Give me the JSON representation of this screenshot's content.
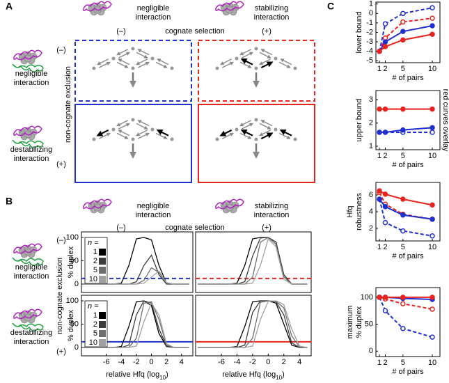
{
  "panel_labels": [
    "A",
    "B",
    "C"
  ],
  "panel_a": {
    "col_headers": [
      [
        "negligible",
        "interaction"
      ],
      [
        "stabilizing",
        "interaction"
      ]
    ],
    "row_headers": [
      [
        "negligible",
        "interaction"
      ],
      [
        "destabilizing",
        "interaction"
      ]
    ],
    "minus": "(–)",
    "cognate_selection": "cognate selection",
    "plus": "(+)",
    "non_cognate_exclusion": "non-cognate exclusion"
  },
  "panel_b": {
    "col_headers": [
      [
        "negligible",
        "interaction"
      ],
      [
        "stabilizing",
        "interaction"
      ]
    ],
    "row_headers": [
      [
        "negligible",
        "interaction"
      ],
      [
        "destabilizing",
        "interaction"
      ]
    ],
    "minus": "(–)",
    "cognate_selection": "cognate selection",
    "plus": "(+)",
    "non_cognate_exclusion": "non-cognate exclusion"
  },
  "chart_data": [
    {
      "type": "line",
      "x": [
        -9,
        -8,
        -7,
        -6,
        -5,
        -4,
        -3,
        -2,
        -1,
        0,
        1,
        2,
        3,
        4,
        5
      ],
      "xlim": [
        -9.3,
        5.5
      ],
      "ylim": [
        -18,
        112
      ],
      "yticks": [
        0,
        50,
        100
      ],
      "y_label": [
        "% duplex"
      ],
      "legend": "upper left",
      "legend_title": "n =",
      "threshold": {
        "value": 12,
        "color": "#1f2fd0",
        "dashed": true
      },
      "series": [
        {
          "name": "1",
          "color": "#000000",
          "values": [
            0,
            0,
            0,
            0,
            0,
            2,
            40,
            97,
            100,
            95,
            40,
            2,
            0,
            0,
            0
          ]
        },
        {
          "name": "2",
          "color": "#3c3c3c",
          "values": [
            0,
            0,
            0,
            0,
            0,
            0,
            0,
            5,
            40,
            62,
            20,
            0,
            0,
            0,
            0
          ]
        },
        {
          "name": "5",
          "color": "#6e6e6e",
          "values": [
            0,
            0,
            0,
            0,
            0,
            0,
            0,
            0,
            8,
            35,
            25,
            2,
            0,
            0,
            0
          ]
        },
        {
          "name": "10",
          "color": "#a0a0a0",
          "values": [
            0,
            0,
            0,
            0,
            0,
            0,
            0,
            0,
            2,
            15,
            28,
            3,
            0,
            0,
            0
          ]
        }
      ]
    },
    {
      "type": "line",
      "x": [
        -9,
        -8,
        -7,
        -6,
        -5,
        -4,
        -3,
        -2,
        -1,
        0,
        1,
        2,
        3,
        4,
        5
      ],
      "xlim": [
        -9.3,
        5.5
      ],
      "ylim": [
        -18,
        112
      ],
      "threshold": {
        "value": 12,
        "color": "#e8231d",
        "dashed": true
      },
      "series": [
        {
          "color": "#000000",
          "values": [
            0,
            0,
            0,
            0,
            0,
            2,
            40,
            97,
            100,
            100,
            90,
            20,
            0,
            0,
            0
          ]
        },
        {
          "color": "#3c3c3c",
          "values": [
            0,
            0,
            0,
            0,
            0,
            0,
            5,
            60,
            99,
            100,
            90,
            20,
            0,
            0,
            0
          ]
        },
        {
          "color": "#6e6e6e",
          "values": [
            0,
            0,
            0,
            0,
            0,
            0,
            0,
            15,
            90,
            100,
            85,
            15,
            0,
            0,
            0
          ]
        },
        {
          "color": "#a0a0a0",
          "values": [
            0,
            0,
            0,
            0,
            0,
            0,
            0,
            2,
            40,
            97,
            80,
            10,
            0,
            0,
            0
          ]
        }
      ]
    },
    {
      "type": "line",
      "x": [
        -9,
        -8,
        -7,
        -6,
        -5,
        -4,
        -3,
        -2,
        -1,
        0,
        1,
        2,
        3,
        4,
        5
      ],
      "xlim": [
        -9.3,
        5.5
      ],
      "ylim": [
        -18,
        112
      ],
      "yticks": [
        0,
        50,
        100
      ],
      "xticks": [
        -6,
        -4,
        -2,
        0,
        2,
        4
      ],
      "x_label": [
        "relative Hfq (log",
        "10",
        ")"
      ],
      "y_label": [
        "% duplex"
      ],
      "legend": "upper left",
      "legend_title": "n =",
      "threshold": {
        "value": 12,
        "color": "#1f2fd0",
        "dashed": false
      },
      "series": [
        {
          "name": "1",
          "color": "#000000",
          "values": [
            0,
            0,
            0,
            0,
            0,
            2,
            45,
            98,
            100,
            90,
            30,
            2,
            0,
            0,
            0
          ]
        },
        {
          "name": "2",
          "color": "#3c3c3c",
          "values": [
            0,
            0,
            0,
            0,
            0,
            0,
            5,
            70,
            100,
            95,
            40,
            3,
            0,
            0,
            0
          ]
        },
        {
          "name": "5",
          "color": "#6e6e6e",
          "values": [
            0,
            0,
            0,
            0,
            0,
            0,
            0,
            20,
            95,
            98,
            60,
            5,
            0,
            0,
            0
          ]
        },
        {
          "name": "10",
          "color": "#a0a0a0",
          "values": [
            0,
            0,
            0,
            0,
            0,
            0,
            0,
            3,
            55,
            95,
            70,
            8,
            0,
            0,
            0
          ]
        }
      ]
    },
    {
      "type": "line",
      "x": [
        -9,
        -8,
        -7,
        -6,
        -5,
        -4,
        -3,
        -2,
        -1,
        0,
        1,
        2,
        3,
        4,
        5
      ],
      "xlim": [
        -9.3,
        5.5
      ],
      "ylim": [
        -18,
        112
      ],
      "xticks": [
        -6,
        -4,
        -2,
        0,
        2,
        4
      ],
      "x_label": [
        "relative Hfq (log",
        "10",
        ")"
      ],
      "threshold": {
        "value": 12,
        "color": "#e8231d",
        "dashed": false
      },
      "series": [
        {
          "color": "#000000",
          "values": [
            0,
            0,
            0,
            0,
            0,
            2,
            45,
            98,
            100,
            100,
            95,
            50,
            5,
            0,
            0
          ]
        },
        {
          "color": "#3c3c3c",
          "values": [
            0,
            0,
            0,
            0,
            0,
            0,
            5,
            75,
            100,
            100,
            98,
            70,
            10,
            0,
            0
          ]
        },
        {
          "color": "#6e6e6e",
          "values": [
            0,
            0,
            0,
            0,
            0,
            0,
            0,
            20,
            97,
            100,
            99,
            85,
            25,
            1,
            0
          ]
        },
        {
          "color": "#a0a0a0",
          "values": [
            0,
            0,
            0,
            0,
            0,
            0,
            0,
            3,
            60,
            99,
            100,
            92,
            40,
            3,
            0
          ]
        }
      ]
    },
    {
      "type": "line",
      "markers": true,
      "x": [
        1,
        2,
        5,
        10
      ],
      "xlim": [
        0.4,
        11.3
      ],
      "xticks": [
        1,
        2,
        5,
        10
      ],
      "x_label": [
        "# of pairs"
      ],
      "ylim": [
        -5.2,
        1.2
      ],
      "yticks": [
        -5,
        -4,
        -3,
        -2,
        -1,
        0,
        1
      ],
      "y_label": [
        "lower bound"
      ],
      "series": [
        {
          "color": "#1f2fd0",
          "dashed": true,
          "marker": "open",
          "values": [
            -4,
            -1.1,
            0,
            0.6
          ]
        },
        {
          "color": "#e8231d",
          "dashed": true,
          "marker": "open",
          "values": [
            -4,
            -2.6,
            -0.9,
            -0.5
          ]
        },
        {
          "color": "#1f2fd0",
          "dashed": false,
          "marker": "filled",
          "values": [
            -4,
            -3,
            -1.9,
            -1.3
          ]
        },
        {
          "color": "#e8231d",
          "dashed": false,
          "marker": "filled",
          "values": [
            -4,
            -3.5,
            -2.8,
            -2.2
          ]
        }
      ]
    },
    {
      "type": "line",
      "markers": true,
      "x": [
        1,
        2,
        5,
        10
      ],
      "xlim": [
        0.4,
        11.3
      ],
      "xticks": [
        1,
        2,
        5,
        10
      ],
      "x_label": [
        "# of pairs"
      ],
      "ylim": [
        0.85,
        3.4
      ],
      "yticks": [
        1,
        2,
        3
      ],
      "y_label": [
        "upper bound"
      ],
      "annotation": {
        "text": "red curves overlay",
        "color": "#e8231d"
      },
      "series": [
        {
          "color": "#1f2fd0",
          "dashed": true,
          "marker": "open",
          "values": [
            1.6,
            1.6,
            1.6,
            1.6
          ]
        },
        {
          "color": "#1f2fd0",
          "dashed": false,
          "marker": "filled",
          "values": [
            1.6,
            1.6,
            1.7,
            1.8
          ]
        },
        {
          "color": "#e8231d",
          "dashed": false,
          "marker": "filled",
          "values": [
            2.6,
            2.6,
            2.6,
            2.6
          ]
        }
      ]
    },
    {
      "type": "line",
      "markers": true,
      "x": [
        1,
        2,
        5,
        10
      ],
      "xlim": [
        0.4,
        11.3
      ],
      "xticks": [
        1,
        2,
        5,
        10
      ],
      "x_label": [
        "# of pairs"
      ],
      "ylim": [
        0.5,
        7.5
      ],
      "yticks": [
        2,
        4,
        6
      ],
      "y_label": [
        "Hfq",
        "robustness"
      ],
      "series": [
        {
          "color": "#1f2fd0",
          "dashed": true,
          "marker": "open",
          "values": [
            5.5,
            2.7,
            1.7,
            1.1
          ]
        },
        {
          "color": "#e8231d",
          "dashed": true,
          "marker": "open",
          "values": [
            6.3,
            4.9,
            3.7,
            3.1
          ]
        },
        {
          "color": "#1f2fd0",
          "dashed": false,
          "marker": "filled",
          "values": [
            5.5,
            4.6,
            3.6,
            3.1
          ]
        },
        {
          "color": "#e8231d",
          "dashed": false,
          "marker": "filled",
          "values": [
            6.5,
            6.1,
            5.5,
            4.8
          ]
        }
      ]
    },
    {
      "type": "line",
      "markers": true,
      "x": [
        1,
        2,
        5,
        10
      ],
      "xlim": [
        0.4,
        11.3
      ],
      "xticks": [
        1,
        2,
        5,
        10
      ],
      "x_label": [
        "# of pairs"
      ],
      "ylim": [
        -10,
        118
      ],
      "yticks": [
        0,
        50,
        100
      ],
      "y_label": [
        "maximum",
        "% duplex"
      ],
      "series": [
        {
          "color": "#1f2fd0",
          "dashed": true,
          "marker": "open",
          "values": [
            100,
            75,
            42,
            26
          ]
        },
        {
          "color": "#e8231d",
          "dashed": true,
          "marker": "open",
          "values": [
            100,
            97,
            88,
            78
          ]
        },
        {
          "color": "#1f2fd0",
          "dashed": false,
          "marker": "filled",
          "values": [
            100,
            100,
            98,
            96
          ]
        },
        {
          "color": "#e8231d",
          "dashed": false,
          "marker": "filled",
          "values": [
            100,
            100,
            100,
            100
          ]
        }
      ]
    }
  ]
}
